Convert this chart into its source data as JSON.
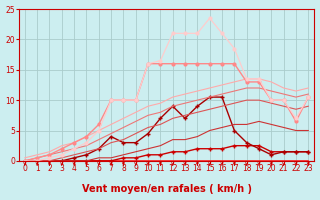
{
  "background_color": "#cceef0",
  "grid_color": "#aacccc",
  "xlabel": "Vent moyen/en rafales ( km/h )",
  "xlabel_color": "#cc0000",
  "xlabel_fontsize": 7,
  "tick_color": "#cc0000",
  "tick_fontsize": 5.5,
  "xlim": [
    -0.5,
    23.5
  ],
  "ylim": [
    0,
    25
  ],
  "yticks": [
    0,
    5,
    10,
    15,
    20,
    25
  ],
  "xticks": [
    0,
    1,
    2,
    3,
    4,
    5,
    6,
    7,
    8,
    9,
    10,
    11,
    12,
    13,
    14,
    15,
    16,
    17,
    18,
    19,
    20,
    21,
    22,
    23
  ],
  "series": [
    {
      "x": [
        0,
        1,
        2,
        3,
        4,
        5,
        6,
        7,
        8,
        9,
        10,
        11,
        12,
        13,
        14,
        15,
        16,
        17,
        18,
        19,
        20,
        21,
        22,
        23
      ],
      "y": [
        0,
        0,
        0,
        0,
        0,
        0,
        0,
        0,
        0,
        0,
        0,
        0,
        0,
        0,
        0,
        0,
        0,
        0,
        0,
        0,
        0,
        0,
        0,
        0
      ],
      "color": "#ff2222",
      "linewidth": 1.2,
      "marker": null,
      "markersize": 0
    },
    {
      "x": [
        0,
        1,
        2,
        3,
        4,
        5,
        6,
        7,
        8,
        9,
        10,
        11,
        12,
        13,
        14,
        15,
        16,
        17,
        18,
        19,
        20,
        21,
        22,
        23
      ],
      "y": [
        0,
        0,
        0,
        0,
        0,
        0,
        0,
        0,
        0.5,
        0.5,
        1,
        1,
        1.5,
        1.5,
        2,
        2,
        2,
        2.5,
        2.5,
        2.5,
        1.5,
        1.5,
        1.5,
        1.5
      ],
      "color": "#cc0000",
      "linewidth": 1.0,
      "marker": "+",
      "markersize": 2.5
    },
    {
      "x": [
        0,
        1,
        2,
        3,
        4,
        5,
        6,
        7,
        8,
        9,
        10,
        11,
        12,
        13,
        14,
        15,
        16,
        17,
        18,
        19,
        20,
        21,
        22,
        23
      ],
      "y": [
        0,
        0,
        0,
        0,
        0.5,
        1,
        2,
        4,
        3,
        3,
        4.5,
        7,
        9,
        7,
        9,
        10.5,
        10.5,
        5,
        3,
        2,
        1,
        1.5,
        1.5,
        1.5
      ],
      "color": "#aa0000",
      "linewidth": 1.0,
      "marker": "+",
      "markersize": 3
    },
    {
      "x": [
        0,
        1,
        2,
        3,
        4,
        5,
        6,
        7,
        8,
        9,
        10,
        11,
        12,
        13,
        14,
        15,
        16,
        17,
        18,
        19,
        20,
        21,
        22,
        23
      ],
      "y": [
        0,
        0,
        0,
        0,
        0,
        0,
        0.5,
        0.5,
        1,
        1.5,
        2,
        2.5,
        3.5,
        3.5,
        4,
        5,
        5.5,
        6,
        6,
        6.5,
        6,
        5.5,
        5,
        5
      ],
      "color": "#cc3333",
      "linewidth": 0.8,
      "marker": null,
      "markersize": 0
    },
    {
      "x": [
        0,
        1,
        2,
        3,
        4,
        5,
        6,
        7,
        8,
        9,
        10,
        11,
        12,
        13,
        14,
        15,
        16,
        17,
        18,
        19,
        20,
        21,
        22,
        23
      ],
      "y": [
        0,
        0,
        0,
        0.5,
        1,
        1.5,
        2,
        3,
        3.5,
        4.5,
        5.5,
        6,
        7,
        7.5,
        8,
        8.5,
        9,
        9.5,
        10,
        10,
        9.5,
        9,
        8.5,
        9
      ],
      "color": "#dd5555",
      "linewidth": 0.8,
      "marker": null,
      "markersize": 0
    },
    {
      "x": [
        0,
        1,
        2,
        3,
        4,
        5,
        6,
        7,
        8,
        9,
        10,
        11,
        12,
        13,
        14,
        15,
        16,
        17,
        18,
        19,
        20,
        21,
        22,
        23
      ],
      "y": [
        0,
        0.5,
        1,
        1.5,
        2,
        2.5,
        3.5,
        4.5,
        5.5,
        6.5,
        7.5,
        8,
        9,
        9.5,
        10,
        10.5,
        11,
        11.5,
        12,
        12,
        11.5,
        11,
        10.5,
        11
      ],
      "color": "#ee7777",
      "linewidth": 0.8,
      "marker": null,
      "markersize": 0
    },
    {
      "x": [
        0,
        1,
        2,
        3,
        4,
        5,
        6,
        7,
        8,
        9,
        10,
        11,
        12,
        13,
        14,
        15,
        16,
        17,
        18,
        19,
        20,
        21,
        22,
        23
      ],
      "y": [
        0.5,
        1,
        1.5,
        2.5,
        3,
        4,
        5,
        6,
        7,
        8,
        9,
        9.5,
        10.5,
        11,
        11.5,
        12,
        12.5,
        13,
        13.5,
        13.5,
        13,
        12,
        11.5,
        12
      ],
      "color": "#ffaaaa",
      "linewidth": 0.8,
      "marker": null,
      "markersize": 0
    },
    {
      "x": [
        0,
        1,
        2,
        3,
        4,
        5,
        6,
        7,
        8,
        9,
        10,
        11,
        12,
        13,
        14,
        15,
        16,
        17,
        18,
        19,
        20,
        21,
        22,
        23
      ],
      "y": [
        0,
        0.5,
        1,
        2,
        3,
        4,
        6,
        10,
        10,
        10,
        16,
        16,
        16,
        16,
        16,
        16,
        16,
        16,
        13,
        13,
        10,
        10,
        6.5,
        10.5
      ],
      "color": "#ff8888",
      "linewidth": 1.0,
      "marker": "o",
      "markersize": 2
    },
    {
      "x": [
        0,
        1,
        2,
        3,
        4,
        5,
        6,
        7,
        8,
        9,
        10,
        11,
        12,
        13,
        14,
        15,
        16,
        17,
        18,
        19,
        20,
        21,
        22,
        23
      ],
      "y": [
        0,
        0,
        0.5,
        1,
        2,
        3,
        5,
        10,
        10,
        10,
        16,
        16.5,
        21,
        21,
        21,
        23.5,
        21,
        18.5,
        13.5,
        13.5,
        10,
        10,
        7,
        10.5
      ],
      "color": "#ffcccc",
      "linewidth": 0.9,
      "marker": "o",
      "markersize": 2
    }
  ],
  "spine_color": "#cc0000"
}
